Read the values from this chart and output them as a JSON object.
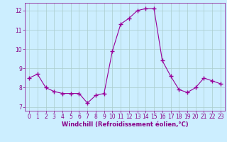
{
  "x": [
    0,
    1,
    2,
    3,
    4,
    5,
    6,
    7,
    8,
    9,
    10,
    11,
    12,
    13,
    14,
    15,
    16,
    17,
    18,
    19,
    20,
    21,
    22,
    23
  ],
  "y": [
    8.5,
    8.7,
    8.0,
    7.8,
    7.7,
    7.7,
    7.7,
    7.2,
    7.6,
    7.7,
    9.9,
    11.3,
    11.6,
    12.0,
    12.1,
    12.1,
    9.4,
    8.6,
    7.9,
    7.75,
    8.0,
    8.5,
    8.35,
    8.2
  ],
  "line_color": "#990099",
  "marker": "+",
  "markersize": 4,
  "markeredgewidth": 1.0,
  "linewidth": 0.8,
  "bg_color": "#cceeff",
  "grid_color": "#aacccc",
  "xlabel": "Windchill (Refroidissement éolien,°C)",
  "xlim": [
    -0.5,
    23.5
  ],
  "ylim": [
    6.8,
    12.4
  ],
  "yticks": [
    7,
    8,
    9,
    10,
    11,
    12
  ],
  "xticks": [
    0,
    1,
    2,
    3,
    4,
    5,
    6,
    7,
    8,
    9,
    10,
    11,
    12,
    13,
    14,
    15,
    16,
    17,
    18,
    19,
    20,
    21,
    22,
    23
  ],
  "tick_color": "#880088",
  "tick_fontsize": 5.5,
  "xlabel_fontsize": 6.0,
  "spine_color": "#888888"
}
